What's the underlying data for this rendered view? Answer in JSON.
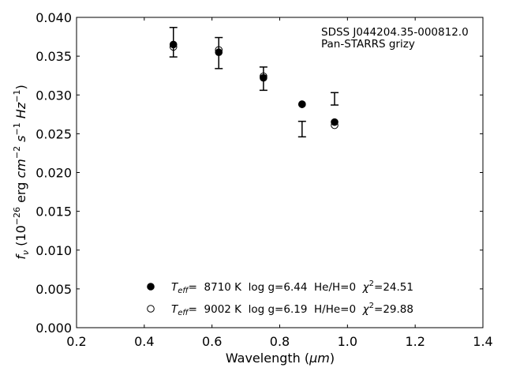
{
  "chart_data": {
    "type": "scatter",
    "title": "",
    "xlabel": {
      "main": "Wavelength (",
      "unit": "μm",
      "close": ")"
    },
    "ylabel": {
      "f": "f",
      "f_sub": "ν",
      "pre": " (10",
      "exp1": "−26",
      "mid": " erg ",
      "cm": "cm",
      "exp2": "−2",
      "s": " s",
      "exp3": "−1",
      "hz": " Hz",
      "exp4": "−1",
      "close": ")"
    },
    "xlim": [
      0.2,
      1.4
    ],
    "ylim": [
      0.0,
      0.04
    ],
    "xticks": [
      0.2,
      0.4,
      0.6,
      0.8,
      1.0,
      1.2,
      1.4
    ],
    "xtick_labels": [
      "0.2",
      "0.4",
      "0.6",
      "0.8",
      "1.0",
      "1.2",
      "1.4"
    ],
    "yticks": [
      0.0,
      0.005,
      0.01,
      0.015,
      0.02,
      0.025,
      0.03,
      0.035,
      0.04
    ],
    "ytick_labels": [
      "0.000",
      "0.005",
      "0.010",
      "0.015",
      "0.020",
      "0.025",
      "0.030",
      "0.035",
      "0.040"
    ],
    "grid": false,
    "annotations": [
      "SDSS J044204.35-000812.0",
      "Pan-STARRS grizy"
    ],
    "observed": {
      "x": [
        0.486,
        0.62,
        0.752,
        0.866,
        0.962
      ],
      "y": [
        0.0368,
        0.0354,
        0.0321,
        0.0256,
        0.0295
      ],
      "yerr": [
        0.0019,
        0.002,
        0.0015,
        0.001,
        0.0008
      ]
    },
    "series": [
      {
        "marker": "filled-circle",
        "label": {
          "t": "T",
          "t_sub": "eff",
          "params": "=  8710 K  log g=6.44  He/H=0  ",
          "chi": "χ",
          "chi_sup": "2",
          "chi_val": "=24.51"
        },
        "x": [
          0.486,
          0.62,
          0.752,
          0.866,
          0.962
        ],
        "y": [
          0.0365,
          0.0355,
          0.0322,
          0.0288,
          0.0265
        ]
      },
      {
        "marker": "open-circle",
        "label": {
          "t": "T",
          "t_sub": "eff",
          "params": "=  9002 K  log g=6.19  H/He=0  ",
          "chi": "χ",
          "chi_sup": "2",
          "chi_val": "=29.88"
        },
        "x": [
          0.486,
          0.62,
          0.752,
          0.866,
          0.962
        ],
        "y": [
          0.0362,
          0.0358,
          0.0324,
          0.0288,
          0.0261
        ]
      }
    ],
    "legend_placement": "lower-center"
  }
}
